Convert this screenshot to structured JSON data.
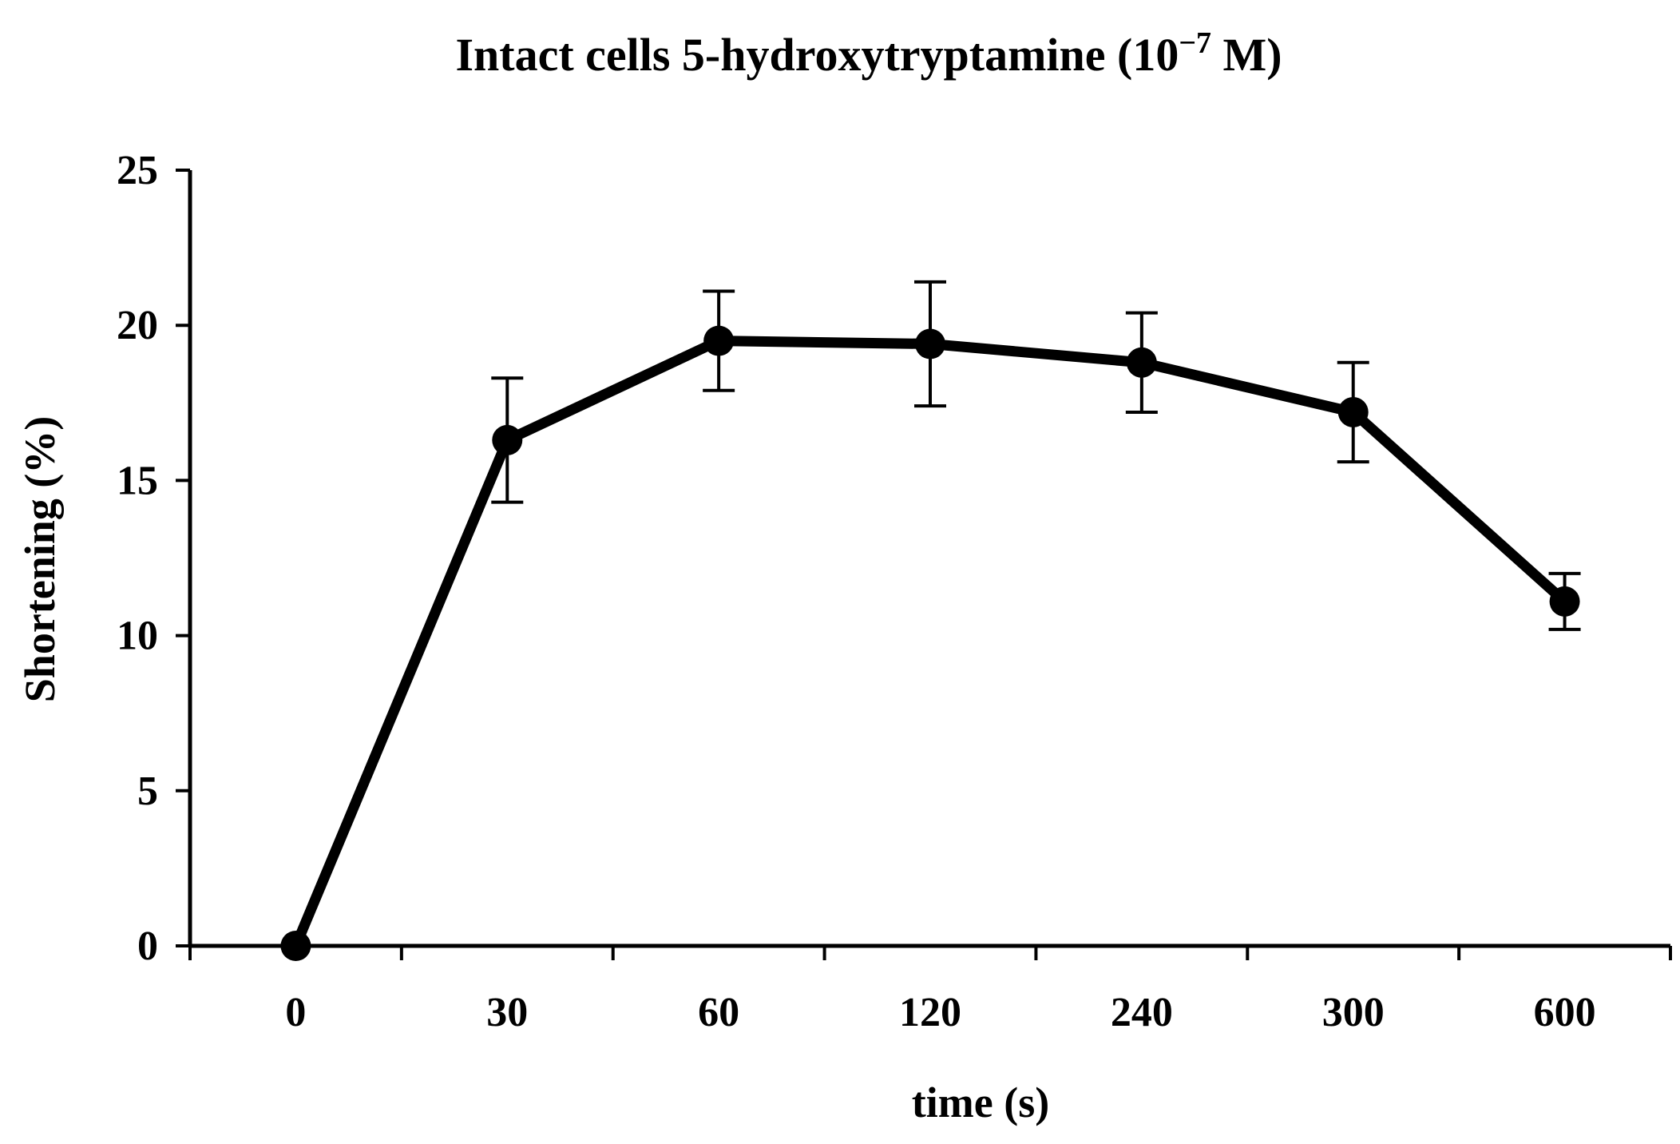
{
  "chart_data": {
    "type": "line",
    "title": "Intact cells 5-hydroxytryptamine (10",
    "title_superscript": "−7",
    "title_suffix": " M)",
    "xlabel": "time (s)",
    "ylabel": "Shortening (%)",
    "categories": [
      "0",
      "30",
      "60",
      "120",
      "240",
      "300",
      "600"
    ],
    "ylim": [
      0,
      25
    ],
    "yticks": [
      0,
      5,
      10,
      15,
      20,
      25
    ],
    "grid": false,
    "legend": "none",
    "series": [
      {
        "values": [
          0,
          16.3,
          19.5,
          19.4,
          18.8,
          17.2,
          11.1
        ],
        "errors": [
          0,
          2.0,
          1.6,
          2.0,
          1.6,
          1.6,
          0.9
        ],
        "color": "#000000"
      }
    ]
  }
}
